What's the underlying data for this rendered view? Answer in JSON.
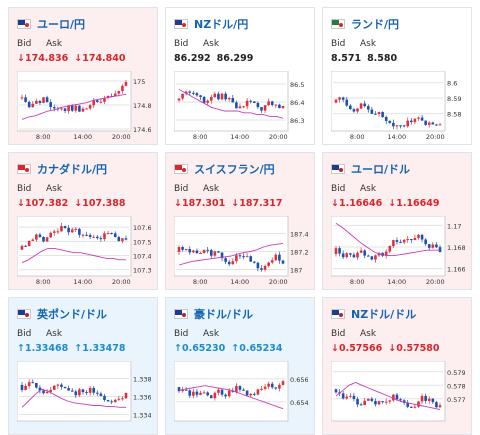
{
  "colors": {
    "down": "#d8262c",
    "up": "#1f8bd0",
    "candle_up": "#e0313a",
    "candle_down": "#1b4fb3",
    "ma": "#c93cc0",
    "grid": "#e3e3e3",
    "pink_bg": "#fdeff0",
    "blue_bg": "#e9f4fc"
  },
  "labels": {
    "bid": "Bid",
    "ask": "Ask"
  },
  "cards": [
    {
      "pair": "ユーロ/円",
      "flag": "eu-jp",
      "bg": "pink",
      "dir": "down",
      "bid": "174.836",
      "ask": "174.840",
      "y_ticks": [
        "175",
        "174.8",
        "174.6"
      ],
      "x_ticks": [
        "8:00",
        "14:00",
        "20:00"
      ],
      "chart_data": {
        "type": "candlestick",
        "ylim": [
          174.6,
          175.05
        ],
        "ma": [
          174.68,
          174.7,
          174.71,
          174.73,
          174.75,
          174.76,
          174.78,
          174.79,
          174.8,
          174.81,
          174.82,
          174.84,
          174.85,
          174.86,
          174.87,
          174.88,
          174.89
        ]
      }
    },
    {
      "pair": "NZドル/円",
      "flag": "nz-jp",
      "bg": "white",
      "dir": "none",
      "bid": "86.292",
      "ask": "86.299",
      "y_ticks": [
        "86.5",
        "86.4",
        "86.3"
      ],
      "x_ticks": [
        "8:00",
        "14:00",
        "20:00"
      ],
      "chart_data": {
        "type": "candlestick",
        "ylim": [
          86.25,
          86.55
        ],
        "ma": [
          86.47,
          86.45,
          86.43,
          86.41,
          86.39,
          86.37,
          86.36,
          86.35,
          86.35,
          86.35,
          86.34,
          86.34,
          86.33,
          86.33,
          86.32,
          86.32,
          86.31
        ]
      }
    },
    {
      "pair": "ランド/円",
      "flag": "za-jp",
      "bg": "white",
      "dir": "none",
      "bid": "8.571",
      "ask": "8.580",
      "y_ticks": [
        "8.6",
        "8.59",
        "8.58"
      ],
      "x_ticks": [
        "8:00",
        "14:00",
        "20:00"
      ],
      "chart_data": {
        "type": "candlestick",
        "ylim": [
          8.57,
          8.605
        ],
        "ma": []
      }
    },
    {
      "pair": "カナダドル/円",
      "flag": "ca-jp",
      "bg": "pink",
      "dir": "down",
      "bid": "107.382",
      "ask": "107.388",
      "y_ticks": [
        "107.6",
        "107.5",
        "107.4",
        "107.3"
      ],
      "x_ticks": [
        "8:00",
        "14:00",
        "20:00"
      ],
      "chart_data": {
        "type": "candlestick",
        "ylim": [
          107.27,
          107.65
        ],
        "ma": [
          107.35,
          107.37,
          107.4,
          107.43,
          107.45,
          107.45,
          107.44,
          107.43,
          107.42,
          107.42,
          107.41,
          107.4,
          107.39,
          107.38,
          107.38,
          107.37,
          107.37
        ]
      }
    },
    {
      "pair": "スイスフラン/円",
      "flag": "ch-jp",
      "bg": "pink",
      "dir": "down",
      "bid": "187.301",
      "ask": "187.317",
      "y_ticks": [
        "187.4",
        "187.2",
        "187"
      ],
      "x_ticks": [
        "8:00",
        "14:00",
        "20:00"
      ],
      "chart_data": {
        "type": "candlestick",
        "ylim": [
          186.95,
          187.55
        ],
        "ma": [
          187.05,
          187.07,
          187.09,
          187.1,
          187.11,
          187.12,
          187.13,
          187.14,
          187.15,
          187.17,
          187.19,
          187.2,
          187.22,
          187.25,
          187.27,
          187.28,
          187.29
        ]
      }
    },
    {
      "pair": "ユーロ/ドル",
      "flag": "eu-us",
      "bg": "pink",
      "dir": "down",
      "bid": "1.16646",
      "ask": "1.16649",
      "y_ticks": [
        "1.17",
        "1.168",
        "1.166"
      ],
      "x_ticks": [
        "8:00",
        "14:00",
        "20:00"
      ],
      "chart_data": {
        "type": "candlestick",
        "ylim": [
          1.1655,
          1.1705
        ],
        "ma": [
          1.1702,
          1.1698,
          1.1693,
          1.1688,
          1.1683,
          1.1679,
          1.1675,
          1.1673,
          1.1672,
          1.1672,
          1.1673,
          1.1674,
          1.1675,
          1.1676,
          1.1677,
          1.1677,
          1.1677
        ]
      }
    },
    {
      "pair": "英ポンド/ドル",
      "flag": "gb-us",
      "bg": "blue",
      "dir": "up",
      "bid": "1.33468",
      "ask": "1.33478",
      "y_ticks": [
        "1.338",
        "1.336",
        "1.334"
      ],
      "x_ticks": [],
      "chart_data": {
        "type": "candlestick",
        "ylim": [
          1.3335,
          1.3395
        ],
        "ma": [
          1.3348,
          1.3355,
          1.3362,
          1.3368,
          1.3366,
          1.3362,
          1.3358,
          1.3355,
          1.3353,
          1.3352,
          1.3351,
          1.335,
          1.335,
          1.3349,
          1.3349,
          1.3348,
          1.3348
        ]
      }
    },
    {
      "pair": "豪ドル/ドル",
      "flag": "au-us",
      "bg": "blue",
      "dir": "up",
      "bid": "0.65230",
      "ask": "0.65234",
      "y_ticks": [
        "0.656",
        "0.654"
      ],
      "x_ticks": [],
      "chart_data": {
        "type": "candlestick",
        "ylim": [
          0.6525,
          0.6572
        ],
        "ma": [
          0.655,
          0.6551,
          0.6552,
          0.6553,
          0.6554,
          0.6553,
          0.6552,
          0.6551,
          0.655,
          0.6548,
          0.6546,
          0.6544,
          0.6542,
          0.654,
          0.6538,
          0.6536,
          0.6534
        ]
      }
    },
    {
      "pair": "NZドル/ドル",
      "flag": "nz-us",
      "bg": "pink",
      "dir": "down",
      "bid": "0.57566",
      "ask": "0.57580",
      "y_ticks": [
        "0.579",
        "0.578",
        "0.577"
      ],
      "x_ticks": [],
      "chart_data": {
        "type": "candlestick",
        "ylim": [
          0.5755,
          0.5795
        ],
        "ma": [
          0.5772,
          0.5776,
          0.578,
          0.5782,
          0.578,
          0.5778,
          0.5776,
          0.5774,
          0.5772,
          0.577,
          0.5768,
          0.5767,
          0.5766,
          0.5765,
          0.5764,
          0.5763,
          0.5762
        ]
      }
    }
  ]
}
